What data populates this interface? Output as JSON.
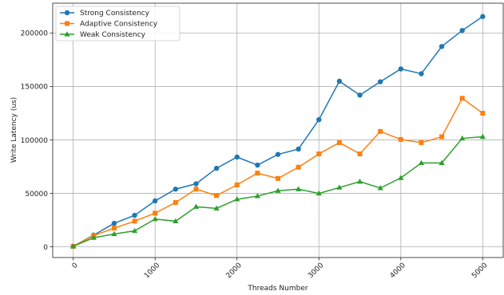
{
  "chart_data": {
    "type": "line",
    "xlabel": "Threads Number",
    "ylabel": "Write Latency (us)",
    "xlim": [
      -250,
      5250
    ],
    "ylim": [
      -10000,
      228000
    ],
    "xticks": [
      0,
      1000,
      2000,
      3000,
      4000,
      5000
    ],
    "yticks": [
      0,
      50000,
      100000,
      150000,
      200000
    ],
    "grid": true,
    "legend_position": "upper-left",
    "x": [
      0,
      250,
      500,
      750,
      1000,
      1250,
      1500,
      1750,
      2000,
      2250,
      2500,
      2750,
      3000,
      3250,
      3500,
      3750,
      4000,
      4250,
      4500,
      4750,
      5000
    ],
    "series": [
      {
        "name": "Strong Consistency",
        "color": "#1f77b4",
        "marker": "circle",
        "values": [
          500,
          11000,
          22000,
          29500,
          43000,
          54000,
          59000,
          73500,
          84000,
          76500,
          86500,
          91500,
          119000,
          155000,
          142000,
          154500,
          166500,
          162000,
          187500,
          202500,
          215500
        ]
      },
      {
        "name": "Adaptive Consistency",
        "color": "#ff7f0e",
        "marker": "square",
        "values": [
          500,
          10500,
          17500,
          24000,
          31500,
          41500,
          54000,
          48000,
          58000,
          69000,
          64000,
          74500,
          87000,
          97500,
          87000,
          108000,
          100500,
          97500,
          103000,
          139000,
          125000
        ]
      },
      {
        "name": "Weak Consistency",
        "color": "#2ca02c",
        "marker": "triangle",
        "values": [
          500,
          8500,
          12000,
          15000,
          26000,
          24000,
          37500,
          36000,
          44500,
          47500,
          52500,
          54000,
          50000,
          55500,
          61000,
          55000,
          64500,
          78500,
          78500,
          101500,
          103000
        ]
      }
    ]
  }
}
